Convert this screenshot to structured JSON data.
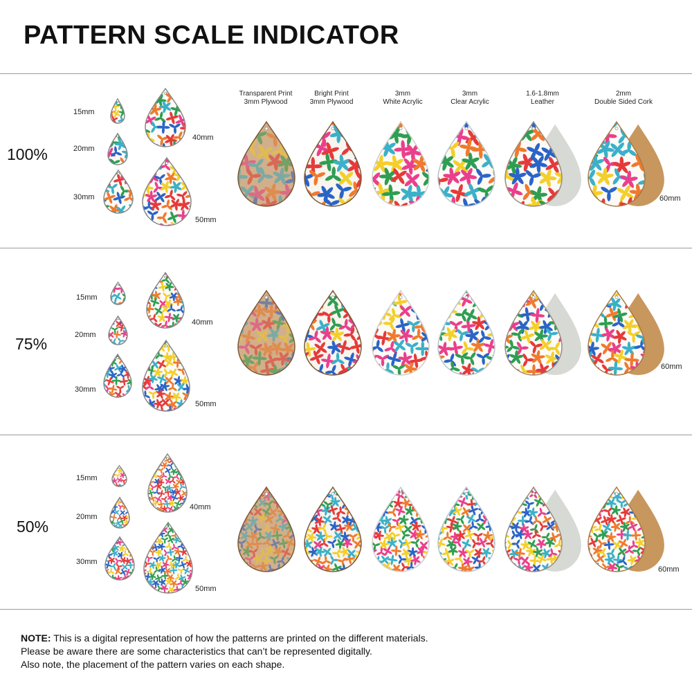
{
  "title": "PATTERN SCALE INDICATOR",
  "materials": [
    {
      "line1": "Transparent Print",
      "line2": "3mm Plywood"
    },
    {
      "line1": "Bright Print",
      "line2": "3mm Plywood"
    },
    {
      "line1": "3mm",
      "line2": "White Acrylic"
    },
    {
      "line1": "3mm",
      "line2": "Clear Acrylic"
    },
    {
      "line1": "1.6-1.8mm",
      "line2": "Leather"
    },
    {
      "line1": "2mm",
      "line2": "Double Sided Cork"
    }
  ],
  "sizes": {
    "s15": "15mm",
    "s20": "20mm",
    "s30": "30mm",
    "s40": "40mm",
    "s50": "50mm",
    "s60": "60mm"
  },
  "sections": [
    {
      "scale": "100%"
    },
    {
      "scale": "75%"
    },
    {
      "scale": "50%"
    }
  ],
  "colors": {
    "pink": "#ea3f8c",
    "orange": "#ef7a2e",
    "blue": "#2a64c8",
    "teal": "#3bb0c9",
    "green": "#2e9e52",
    "yellow": "#f4cf2a",
    "red": "#e63a3a",
    "leather": "#d7d9d4",
    "cork": "#c8975e"
  },
  "note": {
    "bold": "NOTE:",
    "line1": " This is a digital representation of how the patterns are printed on the different materials.",
    "line2": "Please be aware there are some characteristics that can’t be represented digitally.",
    "line3": "Also note, the placement of the pattern varies on each shape."
  }
}
